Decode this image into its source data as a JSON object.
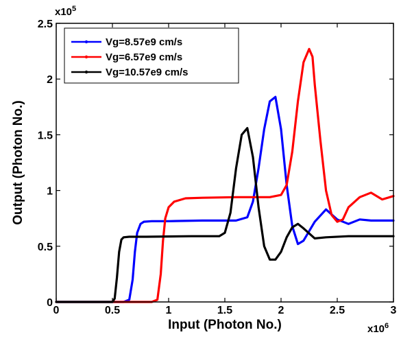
{
  "chart_data": {
    "type": "line",
    "xlabel": "Input (Photon No.)",
    "ylabel": "Output (Photon No.)",
    "x_multiplier": {
      "base": "x10",
      "exp": "6"
    },
    "y_multiplier": {
      "base": "x10",
      "exp": "5"
    },
    "xlim": [
      0,
      3
    ],
    "ylim": [
      0,
      2.5
    ],
    "xticks": [
      0,
      0.5,
      1,
      1.5,
      2,
      2.5,
      3
    ],
    "xtick_labels": [
      "0",
      "0.5",
      "1",
      "1.5",
      "2",
      "2.5",
      "3"
    ],
    "yticks": [
      0,
      0.5,
      1,
      1.5,
      2,
      2.5
    ],
    "ytick_labels": [
      "0",
      "0.5",
      "1",
      "1.5",
      "2",
      "2.5"
    ],
    "grid": false,
    "legend_position": "top-left",
    "series": [
      {
        "name": "Vg=8.57e9 cm/s",
        "color": "#0000ff",
        "x": [
          0,
          0.6,
          0.65,
          0.68,
          0.7,
          0.72,
          0.75,
          0.78,
          0.85,
          1.0,
          1.3,
          1.6,
          1.7,
          1.75,
          1.8,
          1.85,
          1.9,
          1.95,
          2.0,
          2.05,
          2.1,
          2.15,
          2.2,
          2.3,
          2.4,
          2.5,
          2.6,
          2.7,
          2.8,
          3.0
        ],
        "y": [
          0,
          0,
          0.02,
          0.2,
          0.45,
          0.62,
          0.7,
          0.72,
          0.725,
          0.725,
          0.73,
          0.73,
          0.76,
          0.9,
          1.2,
          1.55,
          1.8,
          1.84,
          1.55,
          1.05,
          0.68,
          0.52,
          0.55,
          0.72,
          0.83,
          0.74,
          0.7,
          0.74,
          0.73,
          0.73
        ]
      },
      {
        "name": "Vg=6.57e9 cm/s",
        "color": "#ff0000",
        "x": [
          0,
          0.85,
          0.9,
          0.93,
          0.95,
          0.97,
          1.0,
          1.05,
          1.15,
          1.3,
          1.6,
          1.9,
          2.0,
          2.05,
          2.1,
          2.15,
          2.2,
          2.25,
          2.28,
          2.3,
          2.35,
          2.4,
          2.45,
          2.5,
          2.55,
          2.6,
          2.7,
          2.8,
          2.9,
          3.0
        ],
        "y": [
          0,
          0,
          0.02,
          0.25,
          0.55,
          0.75,
          0.85,
          0.9,
          0.93,
          0.935,
          0.94,
          0.94,
          0.96,
          1.05,
          1.35,
          1.8,
          2.15,
          2.27,
          2.2,
          1.95,
          1.45,
          1.0,
          0.78,
          0.72,
          0.74,
          0.85,
          0.94,
          0.98,
          0.92,
          0.95
        ]
      },
      {
        "name": "Vg=10.57e9 cm/s",
        "color": "#000000",
        "x": [
          0,
          0.5,
          0.52,
          0.54,
          0.56,
          0.58,
          0.6,
          0.65,
          0.8,
          1.2,
          1.45,
          1.5,
          1.55,
          1.6,
          1.65,
          1.7,
          1.75,
          1.8,
          1.85,
          1.9,
          1.95,
          2.0,
          2.05,
          2.1,
          2.15,
          2.2,
          2.3,
          2.4,
          2.6,
          3.0
        ],
        "y": [
          0,
          0,
          0.03,
          0.22,
          0.45,
          0.56,
          0.58,
          0.585,
          0.585,
          0.59,
          0.59,
          0.62,
          0.8,
          1.2,
          1.5,
          1.56,
          1.3,
          0.85,
          0.5,
          0.38,
          0.38,
          0.45,
          0.58,
          0.67,
          0.7,
          0.66,
          0.57,
          0.58,
          0.59,
          0.59
        ]
      }
    ]
  }
}
